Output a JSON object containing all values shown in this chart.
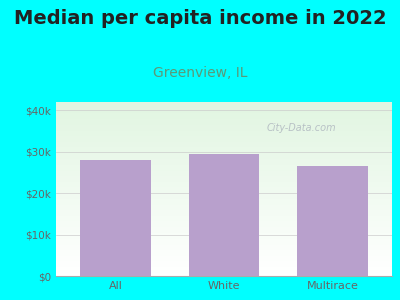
{
  "title": "Median per capita income in 2022",
  "subtitle": "Greenview, IL",
  "categories": [
    "All",
    "White",
    "Multirace"
  ],
  "values": [
    28000,
    29500,
    26500
  ],
  "bar_color": "#b8a0cc",
  "background_color": "#00FFFF",
  "yticks": [
    0,
    10000,
    20000,
    30000,
    40000
  ],
  "ytick_labels": [
    "$0",
    "$10k",
    "$20k",
    "$30k",
    "$40k"
  ],
  "ylim": [
    0,
    42000
  ],
  "title_fontsize": 14,
  "subtitle_fontsize": 10,
  "subtitle_color": "#5a9a78",
  "tick_color": "#666666",
  "watermark": "City-Data.com"
}
